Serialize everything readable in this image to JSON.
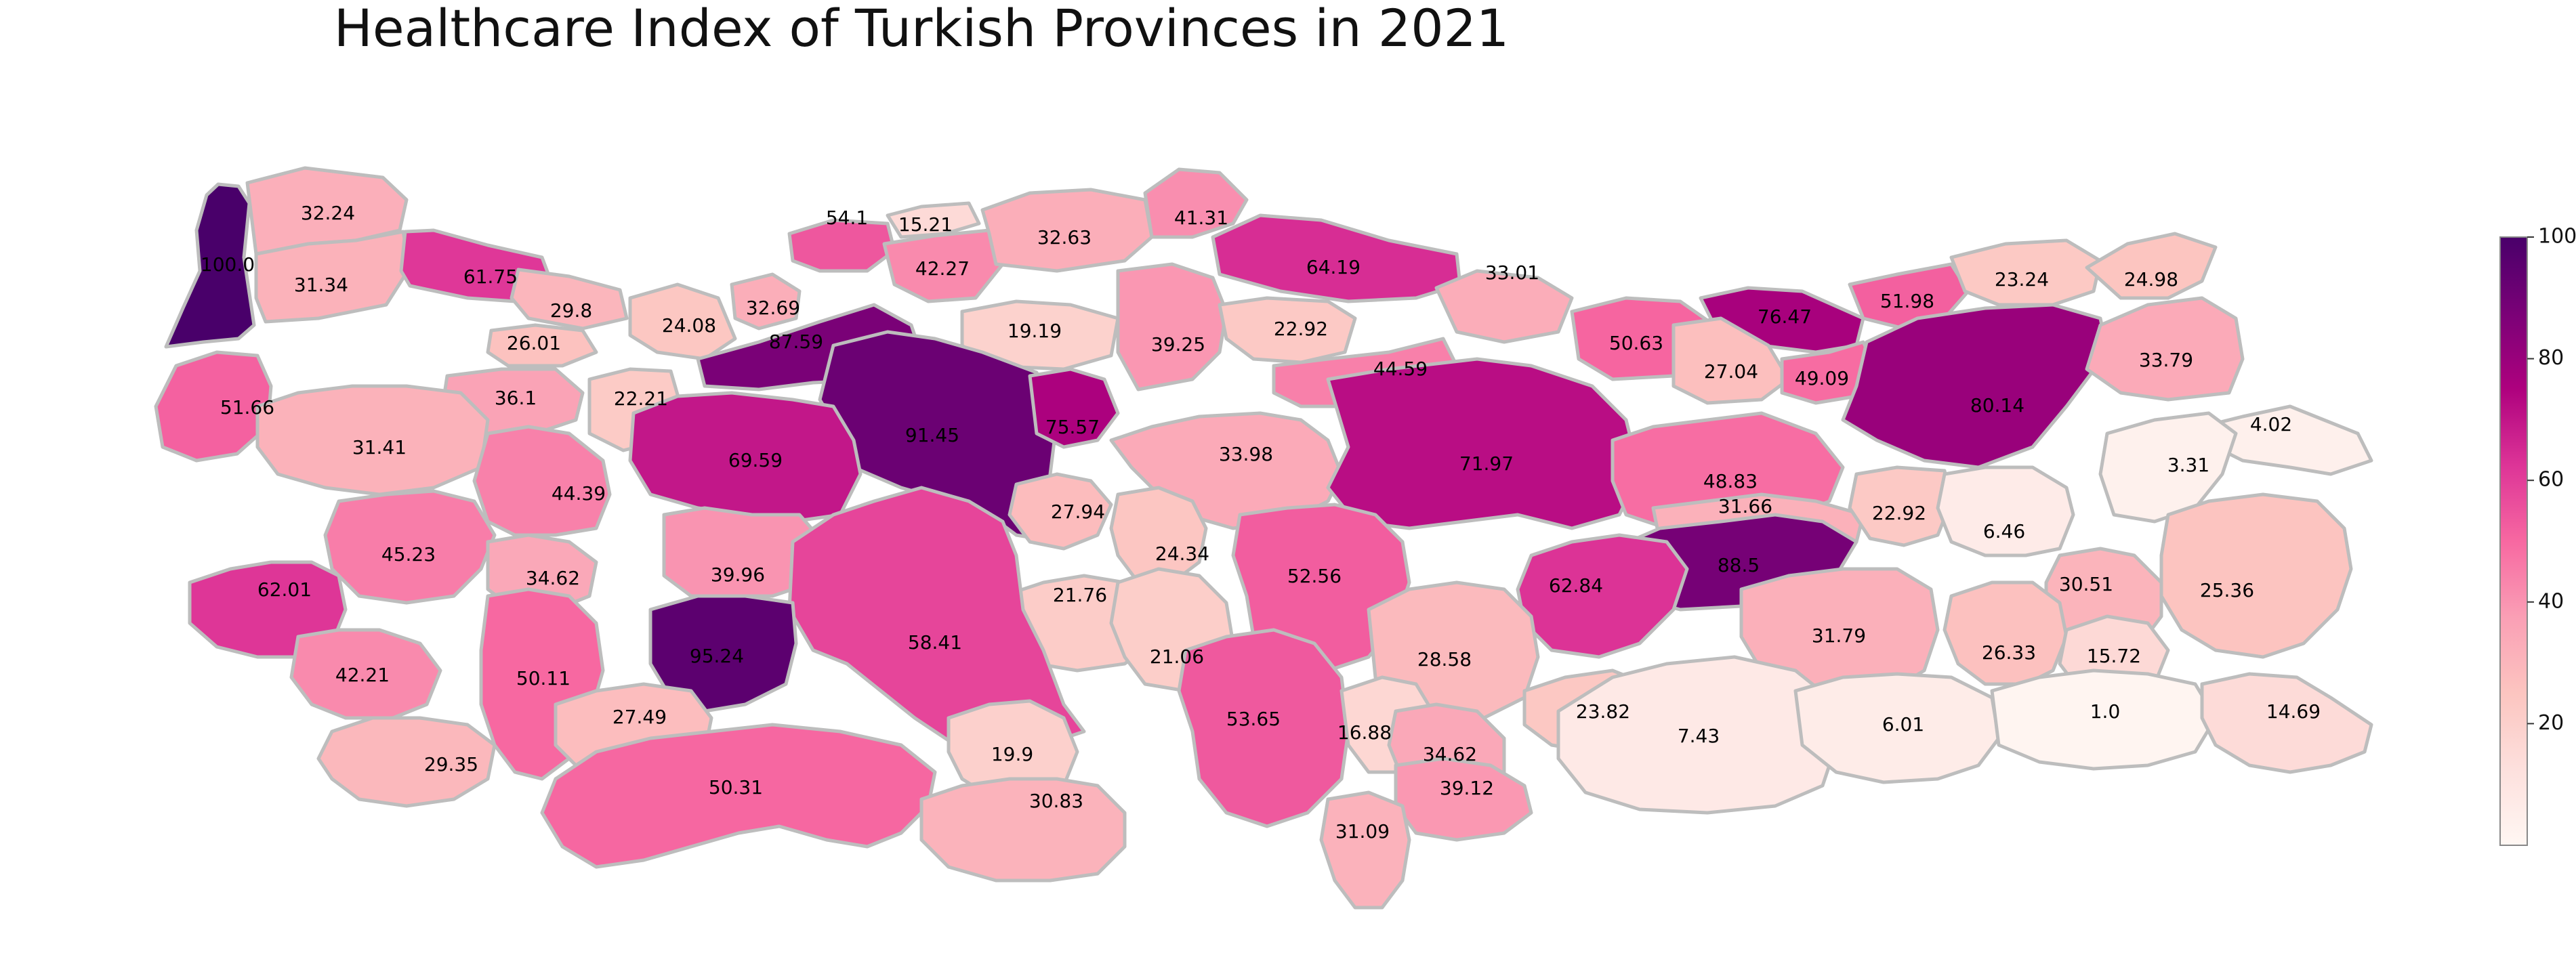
{
  "title": "Healthcare Index of Turkish Provinces in 2021",
  "colorbar": {
    "min": 0,
    "max": 100,
    "ticks": [
      "20",
      "40",
      "60",
      "80",
      "100"
    ],
    "tick_values": [
      20,
      40,
      60,
      80,
      100
    ],
    "colormap": "RdPu",
    "colors": [
      "#fff7f3",
      "#fde0dd",
      "#fcc5c0",
      "#fa9fb5",
      "#f768a1",
      "#dd3497",
      "#ae017e",
      "#7a0177",
      "#49006a"
    ]
  },
  "border_color": "#bdbdbd",
  "provinces": [
    {
      "value": 100.0,
      "label": "100.0"
    },
    {
      "value": 32.24,
      "label": "32.24"
    },
    {
      "value": 31.34,
      "label": "31.34"
    },
    {
      "value": 61.75,
      "label": "61.75"
    },
    {
      "value": 29.8,
      "label": "29.8"
    },
    {
      "value": 26.01,
      "label": "26.01"
    },
    {
      "value": 24.08,
      "label": "24.08"
    },
    {
      "value": 32.69,
      "label": "32.69"
    },
    {
      "value": 54.1,
      "label": "54.1"
    },
    {
      "value": 15.21,
      "label": "15.21"
    },
    {
      "value": 42.27,
      "label": "42.27"
    },
    {
      "value": 32.63,
      "label": "32.63"
    },
    {
      "value": 41.31,
      "label": "41.31"
    },
    {
      "value": 64.19,
      "label": "64.19"
    },
    {
      "value": 33.01,
      "label": "33.01"
    },
    {
      "value": 76.47,
      "label": "76.47"
    },
    {
      "value": 51.98,
      "label": "51.98"
    },
    {
      "value": 23.24,
      "label": "23.24"
    },
    {
      "value": 24.98,
      "label": "24.98"
    },
    {
      "value": 87.59,
      "label": "87.59"
    },
    {
      "value": 19.19,
      "label": "19.19"
    },
    {
      "value": 39.25,
      "label": "39.25"
    },
    {
      "value": 22.92,
      "label": "22.92"
    },
    {
      "value": 50.63,
      "label": "50.63"
    },
    {
      "value": 27.04,
      "label": "27.04"
    },
    {
      "value": 49.09,
      "label": "49.09"
    },
    {
      "value": 80.14,
      "label": "80.14"
    },
    {
      "value": 33.79,
      "label": "33.79"
    },
    {
      "value": 51.66,
      "label": "51.66"
    },
    {
      "value": 36.1,
      "label": "36.1"
    },
    {
      "value": 22.21,
      "label": "22.21"
    },
    {
      "value": 91.45,
      "label": "91.45"
    },
    {
      "value": 75.57,
      "label": "75.57"
    },
    {
      "value": 44.59,
      "label": "44.59"
    },
    {
      "value": 4.02,
      "label": "4.02"
    },
    {
      "value": 31.41,
      "label": "31.41"
    },
    {
      "value": 69.59,
      "label": "69.59"
    },
    {
      "value": 33.98,
      "label": "33.98"
    },
    {
      "value": 71.97,
      "label": "71.97"
    },
    {
      "value": 3.31,
      "label": "3.31"
    },
    {
      "value": 44.39,
      "label": "44.39"
    },
    {
      "value": 27.94,
      "label": "27.94"
    },
    {
      "value": 48.83,
      "label": "48.83"
    },
    {
      "value": 45.23,
      "label": "45.23"
    },
    {
      "value": 24.34,
      "label": "24.34"
    },
    {
      "value": 31.66,
      "label": "31.66"
    },
    {
      "value": 22.92,
      "label": "22.92"
    },
    {
      "value": 6.46,
      "label": "6.46"
    },
    {
      "value": 34.62,
      "label": "34.62"
    },
    {
      "value": 39.96,
      "label": "39.96"
    },
    {
      "value": 52.56,
      "label": "52.56"
    },
    {
      "value": 88.5,
      "label": "88.5"
    },
    {
      "value": 62.01,
      "label": "62.01"
    },
    {
      "value": 21.76,
      "label": "21.76"
    },
    {
      "value": 62.84,
      "label": "62.84"
    },
    {
      "value": 30.51,
      "label": "30.51"
    },
    {
      "value": 25.36,
      "label": "25.36"
    },
    {
      "value": 58.41,
      "label": "58.41"
    },
    {
      "value": 31.79,
      "label": "31.79"
    },
    {
      "value": 95.24,
      "label": "95.24"
    },
    {
      "value": 28.58,
      "label": "28.58"
    },
    {
      "value": 42.21,
      "label": "42.21"
    },
    {
      "value": 50.11,
      "label": "50.11"
    },
    {
      "value": 21.06,
      "label": "21.06"
    },
    {
      "value": 23.82,
      "label": "23.82"
    },
    {
      "value": 26.33,
      "label": "26.33"
    },
    {
      "value": 15.72,
      "label": "15.72"
    },
    {
      "value": 7.43,
      "label": "7.43"
    },
    {
      "value": 27.49,
      "label": "27.49"
    },
    {
      "value": 53.65,
      "label": "53.65"
    },
    {
      "value": 6.01,
      "label": "6.01"
    },
    {
      "value": 1.0,
      "label": "1.0"
    },
    {
      "value": 16.88,
      "label": "16.88"
    },
    {
      "value": 14.69,
      "label": "14.69"
    },
    {
      "value": 29.35,
      "label": "29.35"
    },
    {
      "value": 19.9,
      "label": "19.9"
    },
    {
      "value": 34.62,
      "label": "34.62"
    },
    {
      "value": 50.31,
      "label": "50.31"
    },
    {
      "value": 30.83,
      "label": "30.83"
    },
    {
      "value": 39.12,
      "label": "39.12"
    },
    {
      "value": 31.09,
      "label": "31.09"
    }
  ]
}
